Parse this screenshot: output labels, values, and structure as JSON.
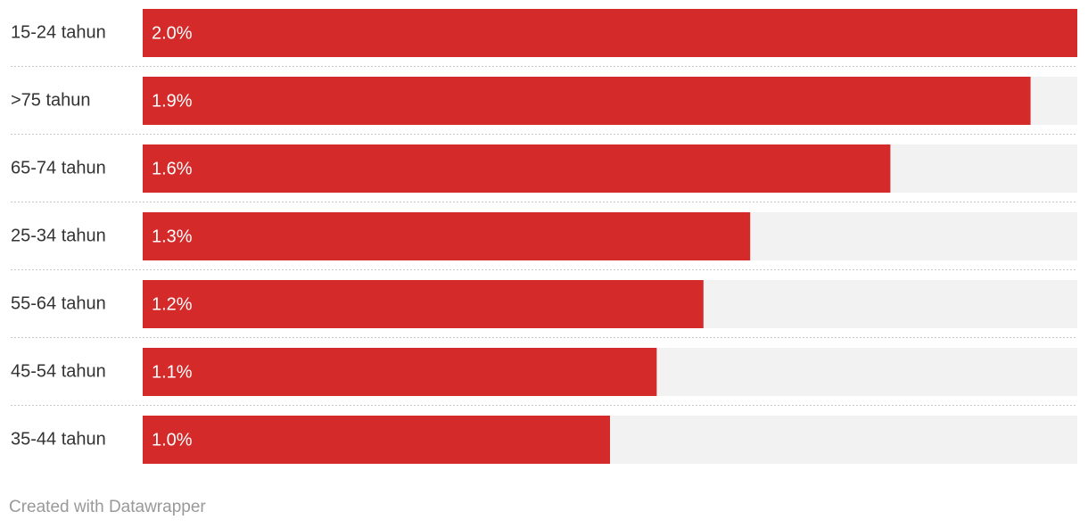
{
  "chart_data": {
    "type": "bar",
    "orientation": "horizontal",
    "categories": [
      "15-24 tahun",
      ">75 tahun",
      "65-74 tahun",
      "25-34 tahun",
      "55-64 tahun",
      "45-54 tahun",
      "35-44 tahun"
    ],
    "values": [
      2.0,
      1.9,
      1.6,
      1.3,
      1.2,
      1.1,
      1.0
    ],
    "value_labels": [
      "2.0%",
      "1.9%",
      "1.6%",
      "1.3%",
      "1.2%",
      "1.1%",
      "1.0%"
    ],
    "color": "#d42a2a",
    "xlim": [
      0,
      2.0
    ],
    "credit": "Created with Datawrapper"
  }
}
